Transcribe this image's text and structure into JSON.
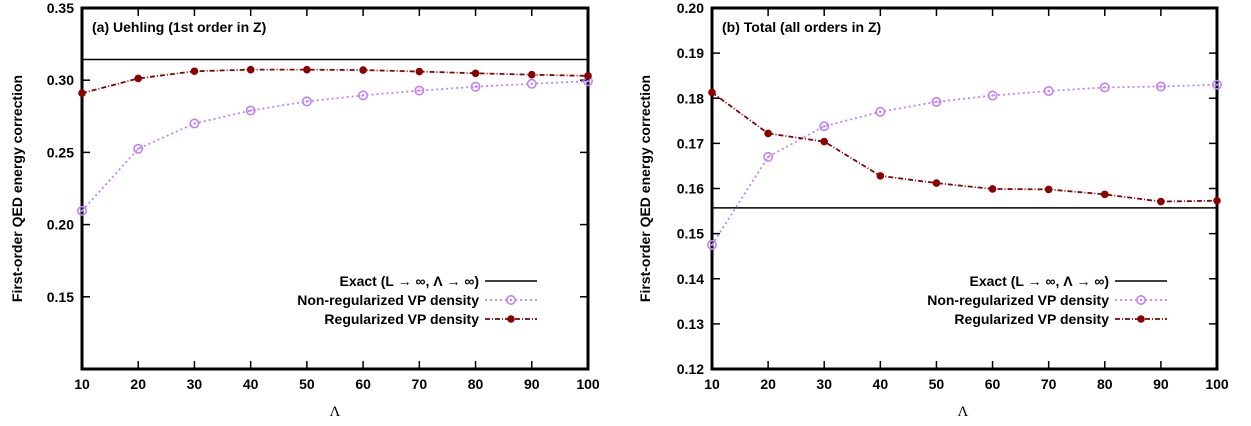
{
  "chart_data": [
    {
      "type": "line",
      "title": "(a) Uehling (1st order in Z)",
      "xlabel": "Λ",
      "ylabel": "First-order QED energy correction",
      "xlim": [
        10,
        100
      ],
      "ylim": [
        0.1,
        0.35
      ],
      "xticks": [
        "10",
        "20",
        "30",
        "40",
        "50",
        "60",
        "70",
        "80",
        "90",
        "100"
      ],
      "yticks": [
        "0.15",
        "0.20",
        "0.25",
        "0.30",
        "0.35"
      ],
      "ytick_values": [
        0.15,
        0.2,
        0.25,
        0.3,
        0.35
      ],
      "grid": false,
      "legend_position": "bottom-right",
      "x": [
        10,
        20,
        30,
        40,
        50,
        60,
        70,
        80,
        90,
        100
      ],
      "exact": {
        "name": "Exact (L → ∞, Λ → ∞)",
        "value": 0.3143,
        "color": "#000000"
      },
      "series": [
        {
          "name": "Non-regularized VP density",
          "color": "#c080ff",
          "marker": "open-circle",
          "values": [
            0.2095,
            0.2525,
            0.27,
            0.279,
            0.2853,
            0.2895,
            0.2928,
            0.2955,
            0.2975,
            0.2993
          ]
        },
        {
          "name": "Regularized VP density",
          "color": "#8b0000",
          "marker": "filled-circle",
          "values": [
            0.291,
            0.3012,
            0.3062,
            0.3073,
            0.3073,
            0.307,
            0.306,
            0.3048,
            0.3038,
            0.303
          ]
        }
      ]
    },
    {
      "type": "line",
      "title": "(b) Total (all orders in Z)",
      "xlabel": "Λ",
      "ylabel": "First-order QED energy correction",
      "xlim": [
        10,
        100
      ],
      "ylim": [
        0.12,
        0.2
      ],
      "xticks": [
        "10",
        "20",
        "30",
        "40",
        "50",
        "60",
        "70",
        "80",
        "90",
        "100"
      ],
      "yticks": [
        "0.12",
        "0.13",
        "0.14",
        "0.15",
        "0.16",
        "0.17",
        "0.18",
        "0.19",
        "0.20"
      ],
      "ytick_values": [
        0.12,
        0.13,
        0.14,
        0.15,
        0.16,
        0.17,
        0.18,
        0.19,
        0.2
      ],
      "grid": false,
      "legend_position": "bottom-right",
      "x": [
        10,
        20,
        30,
        40,
        50,
        60,
        70,
        80,
        90,
        100
      ],
      "exact": {
        "name": "Exact (L → ∞, Λ → ∞)",
        "value": 0.1557,
        "color": "#000000"
      },
      "series": [
        {
          "name": "Non-regularized VP density",
          "color": "#c080ff",
          "marker": "open-circle",
          "values": [
            0.1475,
            0.167,
            0.1738,
            0.177,
            0.1792,
            0.1806,
            0.1816,
            0.1824,
            0.1826,
            0.183
          ]
        },
        {
          "name": "Regularized VP density",
          "color": "#8b0000",
          "marker": "filled-circle",
          "values": [
            0.1813,
            0.1722,
            0.1704,
            0.1628,
            0.1612,
            0.1599,
            0.1598,
            0.1587,
            0.1571,
            0.1573
          ]
        }
      ]
    }
  ]
}
